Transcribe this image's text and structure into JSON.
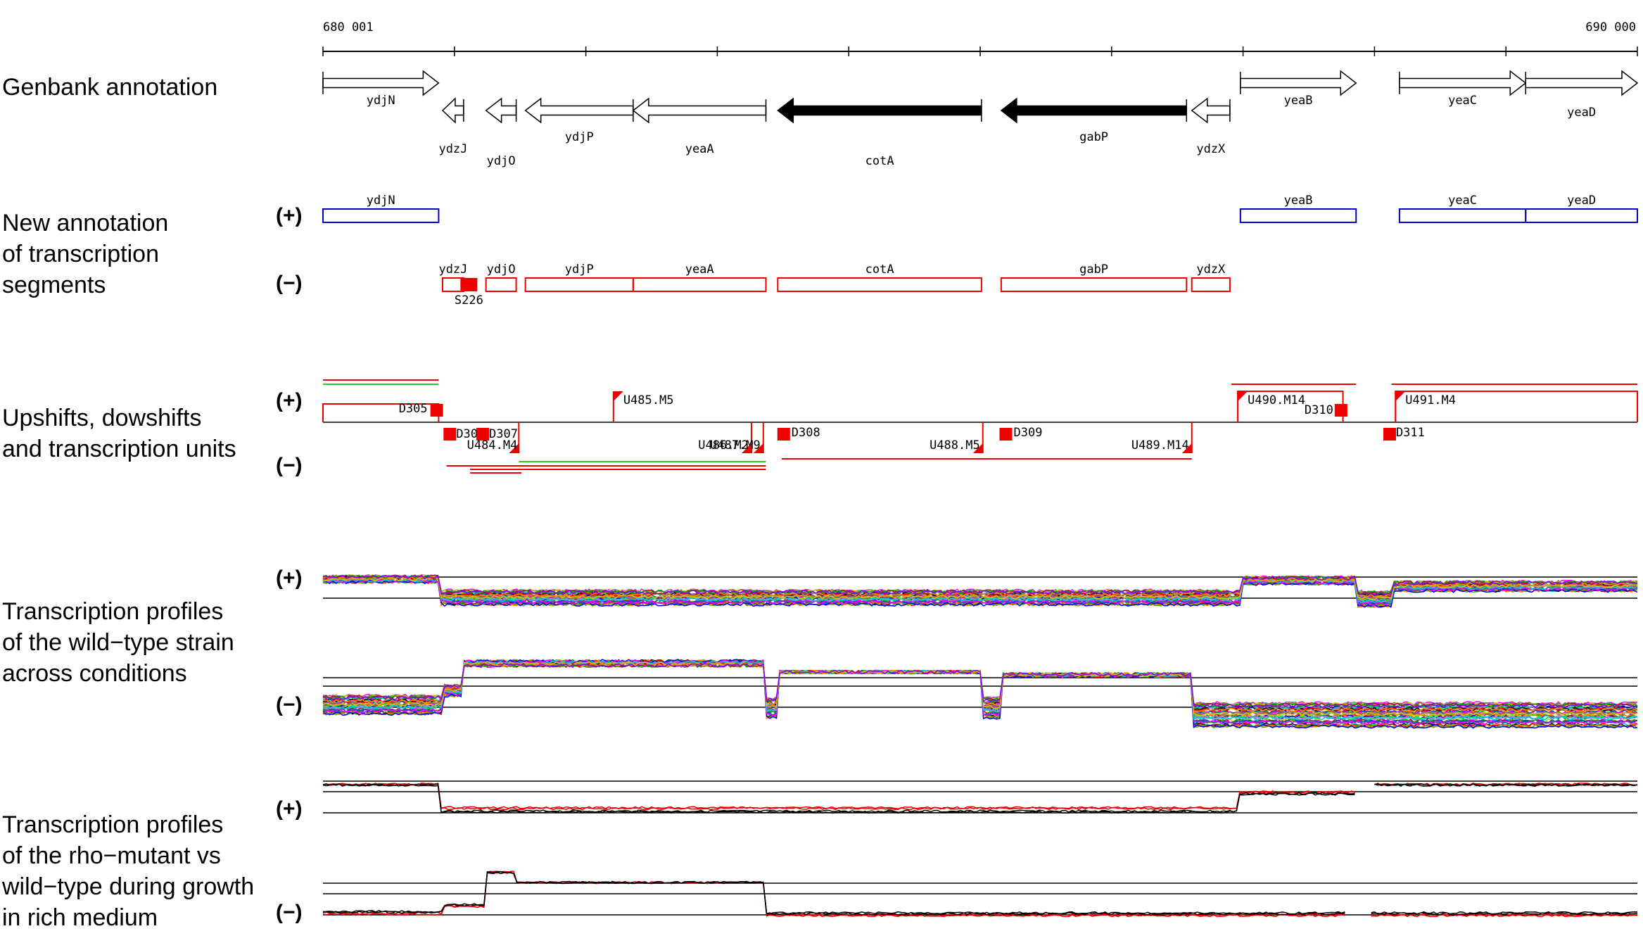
{
  "coords": {
    "start": "680 001",
    "end": "690 000"
  },
  "rows": {
    "genbank": {
      "lines": [
        "Genbank annotation"
      ]
    },
    "segments": {
      "lines": [
        "New annotation",
        "of transcription",
        "segments"
      ]
    },
    "shifts": {
      "lines": [
        "Upshifts, dowshifts",
        "and transcription units"
      ]
    },
    "profiles_wt": {
      "lines": [
        "Transcription profiles",
        "of the wild−type strain",
        "across conditions"
      ]
    },
    "profiles_rho": {
      "lines": [
        "Transcription profiles",
        "of the rho−mutant vs",
        "wild−type during growth",
        "in rich medium"
      ]
    }
  },
  "strand_labels": {
    "plus": "(+)",
    "minus": "(−)"
  },
  "genbank_genes": [
    {
      "name": "ydjN",
      "strand": "+",
      "from": 0.0,
      "to": 0.088,
      "label_dy": 1,
      "filled": false
    },
    {
      "name": "ydzJ",
      "strand": "-",
      "from": 0.091,
      "to": 0.107,
      "label_dy": 2,
      "filled": false
    },
    {
      "name": "ydjO",
      "strand": "-",
      "from": 0.124,
      "to": 0.147,
      "label_dy": 3,
      "filled": false
    },
    {
      "name": "ydjP",
      "strand": "-",
      "from": 0.154,
      "to": 0.236,
      "label_dy": 1,
      "filled": false
    },
    {
      "name": "yeaA",
      "strand": "-",
      "from": 0.236,
      "to": 0.337,
      "label_dy": 2,
      "filled": false
    },
    {
      "name": "cotA",
      "strand": "-",
      "from": 0.346,
      "to": 0.501,
      "label_dy": 3,
      "filled": true
    },
    {
      "name": "gabP",
      "strand": "-",
      "from": 0.516,
      "to": 0.657,
      "label_dy": 1,
      "filled": true
    },
    {
      "name": "ydzX",
      "strand": "-",
      "from": 0.661,
      "to": 0.69,
      "label_dy": 2,
      "filled": false
    },
    {
      "name": "yeaB",
      "strand": "+",
      "from": 0.698,
      "to": 0.786,
      "label_dy": 1,
      "filled": false
    },
    {
      "name": "yeaC",
      "strand": "+",
      "from": 0.819,
      "to": 0.915,
      "label_dy": 1,
      "filled": false
    },
    {
      "name": "yeaD",
      "strand": "+",
      "from": 0.915,
      "to": 1.0,
      "label_dy": 2,
      "filled": false
    }
  ],
  "segments": {
    "plus": [
      {
        "name": "ydjN",
        "from": 0.0,
        "to": 0.088
      },
      {
        "name": "yeaB",
        "from": 0.698,
        "to": 0.786
      },
      {
        "name": "yeaC",
        "from": 0.819,
        "to": 0.915
      },
      {
        "name": "yeaD",
        "from": 0.915,
        "to": 1.0
      }
    ],
    "minus": [
      {
        "name": "ydzJ",
        "from": 0.091,
        "to": 0.107
      },
      {
        "name": "ydjO",
        "from": 0.124,
        "to": 0.147
      },
      {
        "name": "ydjP",
        "from": 0.154,
        "to": 0.236
      },
      {
        "name": "yeaA",
        "from": 0.236,
        "to": 0.337
      },
      {
        "name": "cotA",
        "from": 0.346,
        "to": 0.501
      },
      {
        "name": "gabP",
        "from": 0.516,
        "to": 0.657
      },
      {
        "name": "ydzX",
        "from": 0.661,
        "to": 0.69
      }
    ],
    "small": [
      {
        "name": "S226",
        "at": 0.111
      }
    ]
  },
  "shift_marks": [
    {
      "id": "D305",
      "strand": "+",
      "kind": "down",
      "at": 0.086
    },
    {
      "id": "U485.M5",
      "strand": "+",
      "kind": "up",
      "at": 0.221
    },
    {
      "id": "U490.M14",
      "strand": "+",
      "kind": "up",
      "at": 0.696
    },
    {
      "id": "D310",
      "strand": "+",
      "kind": "down",
      "at": 0.774
    },
    {
      "id": "U491.M4",
      "strand": "+",
      "kind": "up",
      "at": 0.816
    },
    {
      "id": "D306",
      "strand": "-",
      "kind": "down",
      "at": 0.096
    },
    {
      "id": "D307",
      "strand": "-",
      "kind": "down",
      "at": 0.121
    },
    {
      "id": "U484.M4",
      "strand": "-",
      "kind": "up",
      "at": 0.149
    },
    {
      "id": "U486.M2",
      "strand": "-",
      "kind": "up",
      "at": 0.326
    },
    {
      "id": "U487.M9",
      "strand": "-",
      "kind": "up",
      "at": 0.335
    },
    {
      "id": "D308",
      "strand": "-",
      "kind": "down",
      "at": 0.35
    },
    {
      "id": "U488.M5",
      "strand": "-",
      "kind": "up",
      "at": 0.502
    },
    {
      "id": "D309",
      "strand": "-",
      "kind": "down",
      "at": 0.519
    },
    {
      "id": "U489.M14",
      "strand": "-",
      "kind": "up",
      "at": 0.661
    },
    {
      "id": "D311",
      "strand": "-",
      "kind": "down",
      "at": 0.811
    }
  ],
  "colors": {
    "plus_segment": "#0000cc",
    "minus_segment": "#ee0000",
    "shift_mark": "#ee0000",
    "tu_red": "#ee0000",
    "tu_green": "#22cc22",
    "rho_mutant": "#ee0000",
    "wild_type": "#000000",
    "profile_palette": [
      "#ff0000",
      "#00aa00",
      "#0000ff",
      "#ff00ff",
      "#00cccc",
      "#cccc00",
      "#ff8800",
      "#8800ff",
      "#00ff66",
      "#888888",
      "#000000",
      "#aa0044",
      "#66aa00",
      "#0066aa",
      "#cc66ff",
      "#996633"
    ]
  }
}
